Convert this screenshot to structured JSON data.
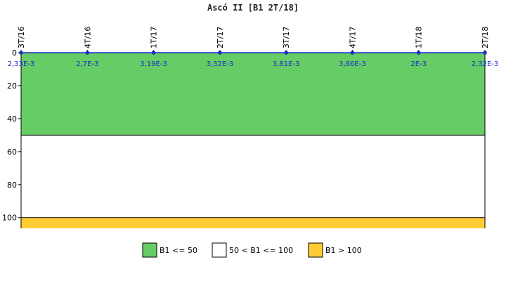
{
  "chart_data": {
    "type": "line",
    "title": "Ascó II [B1 2T/18]",
    "categories": [
      "3T/16",
      "4T/16",
      "1T/17",
      "2T/17",
      "3T/17",
      "4T/17",
      "1T/18",
      "2T/18"
    ],
    "series": [
      {
        "values": [
          0.00233,
          0.0027,
          0.00319,
          0.00332,
          0.00381,
          0.00386,
          0.002,
          0.00232
        ],
        "labels": [
          "2,33E-3",
          "2,7E-3",
          "3,19E-3",
          "3,32E-3",
          "3,81E-3",
          "3,86E-3",
          "2E-3",
          "2,32E-3"
        ],
        "color": "#1a2fc9"
      }
    ],
    "y_axis": {
      "inverted": true,
      "ylim": [
        0,
        106.5
      ],
      "ticks": [
        0,
        20,
        40,
        60,
        80,
        100
      ]
    },
    "bands": [
      {
        "from": 0,
        "to": 50,
        "color": "#66cc66",
        "label": "B1 <= 50"
      },
      {
        "from": 50,
        "to": 100,
        "color": "#ffffff",
        "label": "50 < B1 <= 100"
      },
      {
        "from": 100,
        "to": 106.5,
        "color": "#ffcc33",
        "label": "B1 > 100"
      }
    ],
    "legend_position": "bottom"
  }
}
